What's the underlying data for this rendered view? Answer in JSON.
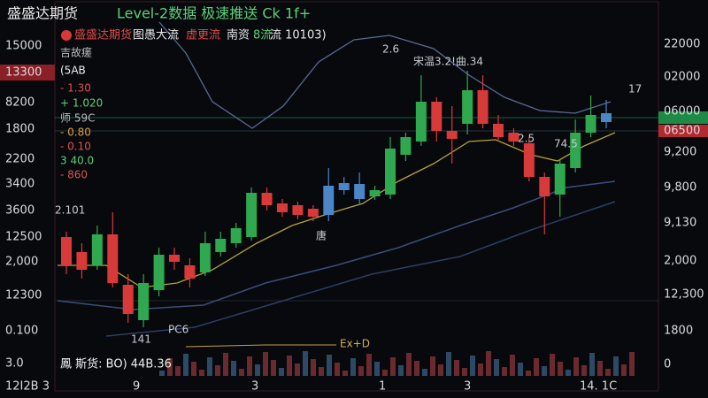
{
  "header": {
    "brand": "盛盛达期货",
    "tagline": "Level-2数据 极速推送 Ck 1f+"
  },
  "subheader": [
    "盛盛达期货",
    "图愚大流",
    "虚更流",
    "南资",
    "8流",
    "流 10103)"
  ],
  "left_axis": [
    "15000",
    "13300",
    "8200",
    "1800",
    "2200",
    "3400",
    "3600",
    "12500",
    "2,000",
    "12300",
    "0.100",
    "3.0"
  ],
  "info_panel": [
    "吉故瘥",
    "(5AB",
    "- 1.30",
    "+ 1.020",
    "师 59C",
    "- 0.80",
    "- 0.10",
    "3 40.0",
    "- 860"
  ],
  "right_axis": [
    "22000",
    "02000",
    "06000",
    "06500",
    "9,200",
    "9,800",
    "9,130",
    "2,000",
    "12,300",
    "1800",
    "0"
  ],
  "annotations": [
    "2.6",
    "宋温3.2!曲.34",
    "17",
    "74.5",
    "2.5",
    "唐",
    "2.101",
    "141",
    "PC6",
    "Ex+D"
  ],
  "volume_label": "鳳 斯货: BO) 44B.36",
  "bottom_axis": [
    "12I2B 3",
    "9",
    "3",
    "1",
    "3",
    "14. 1C"
  ],
  "candles": {
    "ylim": [
      0,
      350
    ],
    "colors": {
      "up": "#2fa84f",
      "down": "#d83a3a",
      "blue": "#4a86c8"
    },
    "items": [
      {
        "o": 90,
        "h": 128,
        "l": 80,
        "c": 122,
        "k": "down"
      },
      {
        "o": 85,
        "h": 115,
        "l": 75,
        "c": 105,
        "k": "down"
      },
      {
        "o": 90,
        "h": 135,
        "l": 85,
        "c": 125,
        "k": "up"
      },
      {
        "o": 70,
        "h": 150,
        "l": 65,
        "c": 125,
        "k": "down"
      },
      {
        "o": 35,
        "h": 80,
        "l": 25,
        "c": 68,
        "k": "down"
      },
      {
        "o": 28,
        "h": 80,
        "l": 20,
        "c": 70,
        "k": "up"
      },
      {
        "o": 62,
        "h": 110,
        "l": 55,
        "c": 102,
        "k": "up"
      },
      {
        "o": 94,
        "h": 110,
        "l": 85,
        "c": 102,
        "k": "down"
      },
      {
        "o": 75,
        "h": 98,
        "l": 65,
        "c": 90,
        "k": "down"
      },
      {
        "o": 82,
        "h": 128,
        "l": 78,
        "c": 115,
        "k": "up"
      },
      {
        "o": 105,
        "h": 128,
        "l": 100,
        "c": 120,
        "k": "up"
      },
      {
        "o": 115,
        "h": 138,
        "l": 110,
        "c": 132,
        "k": "up"
      },
      {
        "o": 122,
        "h": 178,
        "l": 118,
        "c": 172,
        "k": "up"
      },
      {
        "o": 158,
        "h": 178,
        "l": 152,
        "c": 172,
        "k": "down"
      },
      {
        "o": 150,
        "h": 165,
        "l": 145,
        "c": 160,
        "k": "down"
      },
      {
        "o": 147,
        "h": 162,
        "l": 142,
        "c": 158,
        "k": "down"
      },
      {
        "o": 145,
        "h": 158,
        "l": 140,
        "c": 154,
        "k": "down"
      },
      {
        "o": 147,
        "h": 200,
        "l": 140,
        "c": 180,
        "k": "blue"
      },
      {
        "o": 175,
        "h": 190,
        "l": 170,
        "c": 183,
        "k": "blue"
      },
      {
        "o": 165,
        "h": 195,
        "l": 160,
        "c": 182,
        "k": "blue"
      },
      {
        "o": 168,
        "h": 180,
        "l": 164,
        "c": 175,
        "k": "up"
      },
      {
        "o": 170,
        "h": 235,
        "l": 165,
        "c": 222,
        "k": "up"
      },
      {
        "o": 215,
        "h": 240,
        "l": 208,
        "c": 235,
        "k": "up"
      },
      {
        "o": 230,
        "h": 305,
        "l": 225,
        "c": 275,
        "k": "up"
      },
      {
        "o": 242,
        "h": 280,
        "l": 230,
        "c": 275,
        "k": "down"
      },
      {
        "o": 233,
        "h": 270,
        "l": 205,
        "c": 242,
        "k": "down"
      },
      {
        "o": 250,
        "h": 310,
        "l": 238,
        "c": 288,
        "k": "up"
      },
      {
        "o": 250,
        "h": 305,
        "l": 245,
        "c": 288,
        "k": "down"
      },
      {
        "o": 235,
        "h": 260,
        "l": 230,
        "c": 250,
        "k": "down"
      },
      {
        "o": 230,
        "h": 245,
        "l": 225,
        "c": 240,
        "k": "down"
      },
      {
        "o": 190,
        "h": 235,
        "l": 185,
        "c": 228,
        "k": "down"
      },
      {
        "o": 168,
        "h": 195,
        "l": 125,
        "c": 190,
        "k": "down"
      },
      {
        "o": 170,
        "h": 210,
        "l": 145,
        "c": 205,
        "k": "up"
      },
      {
        "o": 200,
        "h": 255,
        "l": 195,
        "c": 240,
        "k": "up"
      },
      {
        "o": 240,
        "h": 282,
        "l": 235,
        "c": 260,
        "k": "up"
      },
      {
        "o": 252,
        "h": 277,
        "l": 245,
        "c": 262,
        "k": "blue"
      }
    ]
  }
}
